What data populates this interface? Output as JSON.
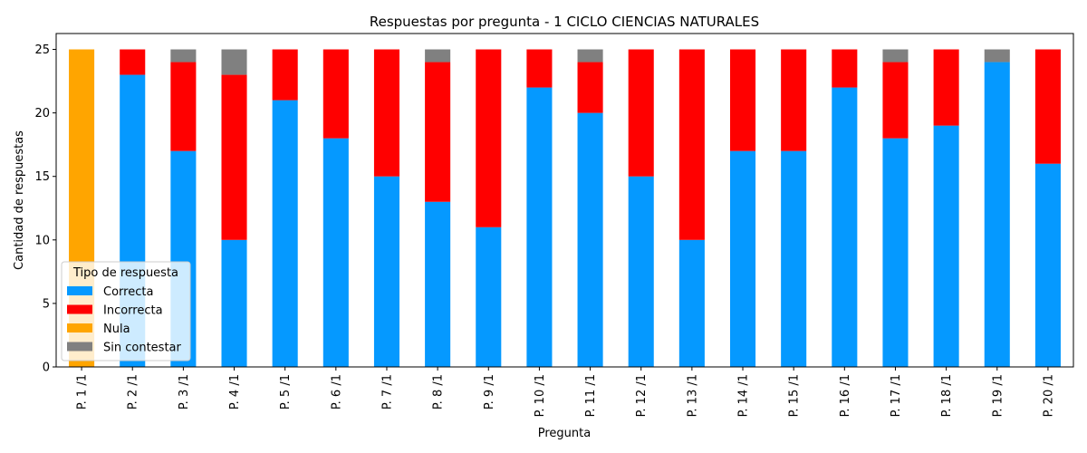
{
  "chart_data": {
    "type": "bar",
    "stacked": true,
    "title": "Respuestas por pregunta - 1 CICLO CIENCIAS NATURALES",
    "xlabel": "Pregunta",
    "ylabel": "Cantidad de respuestas",
    "ylim": [
      0,
      26.25
    ],
    "yticks": [
      0,
      5,
      10,
      15,
      20,
      25
    ],
    "grid": false,
    "legend": {
      "title": "Tipo de respuesta",
      "position": "lower-left"
    },
    "categories": [
      "P. 1 /1",
      "P. 2 /1",
      "P. 3 /1",
      "P. 4 /1",
      "P. 5 /1",
      "P. 6 /1",
      "P. 7 /1",
      "P. 8 /1",
      "P. 9 /1",
      "P. 10 /1",
      "P. 11 /1",
      "P. 12 /1",
      "P. 13 /1",
      "P. 14 /1",
      "P. 15 /1",
      "P. 16 /1",
      "P. 17 /1",
      "P. 18 /1",
      "P. 19 /1",
      "P. 20 /1"
    ],
    "series": [
      {
        "name": "Correcta",
        "color": "#0599ff",
        "values": [
          0,
          23,
          17,
          10,
          21,
          18,
          15,
          13,
          11,
          22,
          20,
          15,
          10,
          17,
          17,
          22,
          18,
          19,
          24,
          16
        ]
      },
      {
        "name": "Incorrecta",
        "color": "#ff0000",
        "values": [
          0,
          2,
          7,
          13,
          4,
          7,
          10,
          11,
          14,
          3,
          4,
          10,
          15,
          8,
          8,
          3,
          6,
          6,
          0,
          9
        ]
      },
      {
        "name": "Nula",
        "color": "#ffa500",
        "values": [
          25,
          0,
          0,
          0,
          0,
          0,
          0,
          0,
          0,
          0,
          0,
          0,
          0,
          0,
          0,
          0,
          0,
          0,
          0,
          0
        ]
      },
      {
        "name": "Sin contestar",
        "color": "#808080",
        "values": [
          0,
          0,
          1,
          2,
          0,
          0,
          0,
          1,
          0,
          0,
          1,
          0,
          0,
          0,
          0,
          0,
          1,
          0,
          1,
          0
        ]
      }
    ]
  }
}
